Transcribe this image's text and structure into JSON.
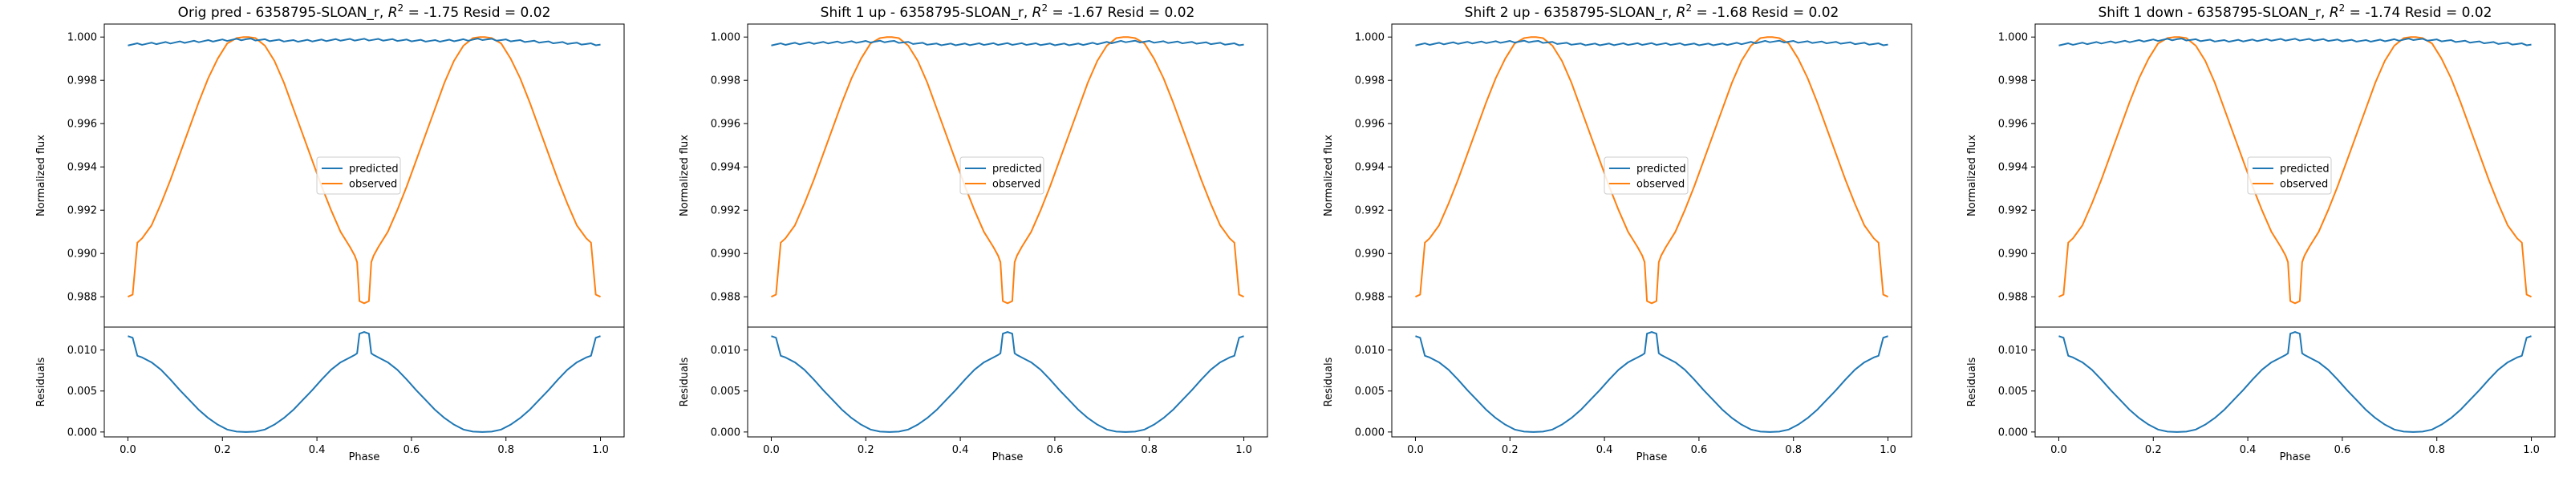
{
  "chart_data": [
    {
      "type": "line",
      "title": "Orig pred - 6358795-SLOAN_r, R² = -1.75 Resid = 0.02",
      "title_parts": {
        "prefix": "Orig pred - 6358795-SLOAN_r, ",
        "r2_label": "R",
        "r2_sup": "2",
        "suffix": " = -1.75 Resid = 0.02"
      },
      "ylabel_top": "Normalized flux",
      "ylabel_bottom": "Residuals",
      "xlabel": "Phase",
      "legend": [
        "predicted",
        "observed"
      ],
      "predicted_offset": 0.0
    },
    {
      "type": "line",
      "title": "Shift 1 up - 6358795-SLOAN_r, R² = -1.67 Resid = 0.02",
      "title_parts": {
        "prefix": "Shift 1 up - 6358795-SLOAN_r, ",
        "r2_label": "R",
        "r2_sup": "2",
        "suffix": " = -1.67 Resid = 0.02"
      },
      "ylabel_top": "Normalized flux",
      "ylabel_bottom": "Residuals",
      "xlabel": "Phase",
      "legend": [
        "predicted",
        "observed"
      ],
      "predicted_offset": -0.0002
    },
    {
      "type": "line",
      "title": "Shift 2 up - 6358795-SLOAN_r, R² = -1.68 Resid = 0.02",
      "title_parts": {
        "prefix": "Shift 2 up - 6358795-SLOAN_r, ",
        "r2_label": "R",
        "r2_sup": "2",
        "suffix": " = -1.68 Resid = 0.02"
      },
      "ylabel_top": "Normalized flux",
      "ylabel_bottom": "Residuals",
      "xlabel": "Phase",
      "legend": [
        "predicted",
        "observed"
      ],
      "predicted_offset": -0.0002
    },
    {
      "type": "line",
      "title": "Shift 1 down - 6358795-SLOAN_r, R² = -1.74 Resid = 0.02",
      "title_parts": {
        "prefix": "Shift 1 down - 6358795-SLOAN_r, ",
        "r2_label": "R",
        "r2_sup": "2",
        "suffix": " = -1.74 Resid = 0.02"
      },
      "ylabel_top": "Normalized flux",
      "ylabel_bottom": "Residuals",
      "xlabel": "Phase",
      "legend": [
        "predicted",
        "observed"
      ],
      "predicted_offset": 0.0
    }
  ],
  "shared": {
    "flux_ylim": [
      0.9866,
      1.0006
    ],
    "flux_yticks": [
      0.988,
      0.99,
      0.992,
      0.994,
      0.996,
      0.998,
      1.0
    ],
    "flux_ytick_labels": [
      "0.988",
      "0.990",
      "0.992",
      "0.994",
      "0.996",
      "0.998",
      "1.000"
    ],
    "resid_ylim": [
      -0.0006,
      0.0128
    ],
    "resid_yticks": [
      0.0,
      0.005,
      0.01
    ],
    "resid_ytick_labels": [
      "0.000",
      "0.005",
      "0.010"
    ],
    "xlim": [
      -0.05,
      1.05
    ],
    "xticks": [
      0.0,
      0.2,
      0.4,
      0.6,
      0.8,
      1.0
    ],
    "xtick_labels": [
      "0.0",
      "0.2",
      "0.4",
      "0.6",
      "0.8",
      "1.0"
    ],
    "observed_curve": {
      "x": [
        0.0,
        0.01,
        0.02,
        0.03,
        0.05,
        0.07,
        0.09,
        0.11,
        0.13,
        0.15,
        0.17,
        0.19,
        0.21,
        0.23,
        0.245,
        0.25,
        0.255,
        0.27,
        0.29,
        0.31,
        0.33,
        0.35,
        0.37,
        0.39,
        0.41,
        0.43,
        0.45,
        0.47,
        0.48,
        0.485,
        0.49,
        0.5,
        0.51,
        0.515,
        0.52,
        0.53,
        0.55,
        0.57,
        0.59,
        0.61,
        0.63,
        0.65,
        0.67,
        0.69,
        0.71,
        0.73,
        0.745,
        0.75,
        0.755,
        0.77,
        0.79,
        0.81,
        0.83,
        0.85,
        0.87,
        0.89,
        0.91,
        0.93,
        0.95,
        0.97,
        0.98,
        0.99,
        1.0
      ],
      "y": [
        0.988,
        0.9881,
        0.9905,
        0.9907,
        0.9913,
        0.9923,
        0.9934,
        0.9946,
        0.9958,
        0.997,
        0.9981,
        0.999,
        0.9997,
        0.99995,
        1.0,
        1.0,
        1.0,
        0.99995,
        0.9996,
        0.9989,
        0.9979,
        0.9967,
        0.9955,
        0.9943,
        0.9931,
        0.992,
        0.991,
        0.9903,
        0.9899,
        0.9896,
        0.9878,
        0.9877,
        0.9878,
        0.9896,
        0.9899,
        0.9903,
        0.991,
        0.992,
        0.9931,
        0.9943,
        0.9955,
        0.9967,
        0.9979,
        0.9989,
        0.9996,
        0.99995,
        1.0,
        1.0,
        1.0,
        0.99995,
        0.9997,
        0.999,
        0.9981,
        0.997,
        0.9958,
        0.9946,
        0.9934,
        0.9923,
        0.9913,
        0.9907,
        0.9905,
        0.9881,
        0.988
      ]
    },
    "predicted_curve": {
      "x": [
        0.0,
        0.05,
        0.1,
        0.15,
        0.2,
        0.25,
        0.3,
        0.35,
        0.4,
        0.45,
        0.5,
        0.55,
        0.6,
        0.65,
        0.7,
        0.75,
        0.8,
        0.85,
        0.9,
        0.95,
        1.0
      ],
      "y": [
        0.99965,
        0.9997,
        0.99975,
        0.9998,
        0.99985,
        0.9999,
        0.99985,
        0.99982,
        0.99984,
        0.99987,
        0.99988,
        0.99987,
        0.99984,
        0.99982,
        0.99985,
        0.9999,
        0.99985,
        0.9998,
        0.99975,
        0.9997,
        0.99965
      ]
    },
    "residual_curve": {
      "x": [
        0.0,
        0.01,
        0.02,
        0.03,
        0.05,
        0.07,
        0.09,
        0.11,
        0.13,
        0.15,
        0.17,
        0.19,
        0.21,
        0.23,
        0.25,
        0.27,
        0.29,
        0.31,
        0.33,
        0.35,
        0.37,
        0.39,
        0.41,
        0.43,
        0.45,
        0.47,
        0.48,
        0.485,
        0.49,
        0.5,
        0.51,
        0.515,
        0.52,
        0.53,
        0.55,
        0.57,
        0.59,
        0.61,
        0.63,
        0.65,
        0.67,
        0.69,
        0.71,
        0.73,
        0.75,
        0.77,
        0.79,
        0.81,
        0.83,
        0.85,
        0.87,
        0.89,
        0.91,
        0.93,
        0.95,
        0.97,
        0.98,
        0.99,
        1.0
      ],
      "y": [
        0.0117,
        0.0115,
        0.0093,
        0.0091,
        0.0085,
        0.0076,
        0.0064,
        0.0051,
        0.0039,
        0.0027,
        0.0017,
        0.0009,
        0.0003,
        5e-05,
        0.0,
        5e-05,
        0.0003,
        0.0009,
        0.0017,
        0.0027,
        0.0039,
        0.0051,
        0.0064,
        0.0076,
        0.0085,
        0.0091,
        0.0094,
        0.0096,
        0.012,
        0.0122,
        0.012,
        0.0096,
        0.0094,
        0.0091,
        0.0085,
        0.0076,
        0.0064,
        0.0051,
        0.0039,
        0.0027,
        0.0017,
        0.0009,
        0.0003,
        5e-05,
        0.0,
        5e-05,
        0.0003,
        0.0009,
        0.0017,
        0.0027,
        0.0039,
        0.0051,
        0.0064,
        0.0076,
        0.0085,
        0.0091,
        0.0093,
        0.0115,
        0.0117
      ]
    },
    "colors": {
      "predicted": "#1f77b4",
      "observed": "#ff7f0e",
      "residual": "#1f77b4",
      "axes": "#000000"
    }
  }
}
